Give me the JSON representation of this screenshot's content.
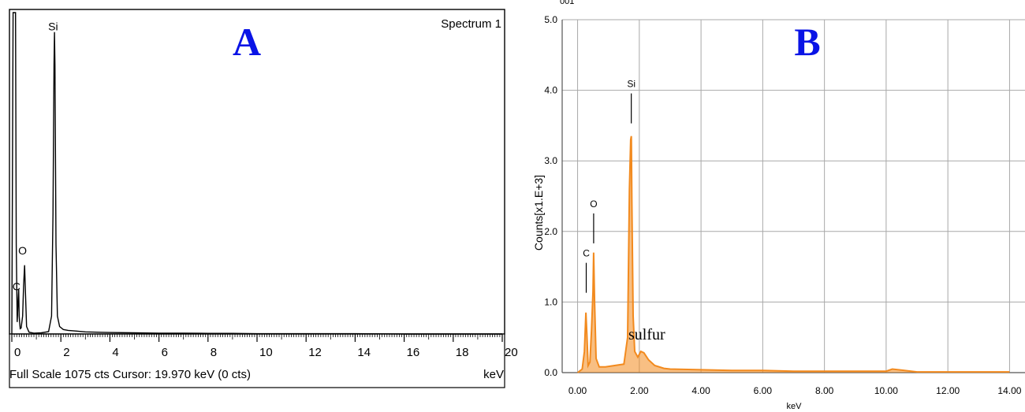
{
  "chart_data": [
    {
      "type": "line",
      "panel_letter": "A",
      "spectrum_label": "Spectrum 1",
      "xlabel": "keV",
      "xlim": [
        0,
        20
      ],
      "ylim": [
        0,
        1075
      ],
      "x_ticks": [
        0,
        2,
        4,
        6,
        8,
        10,
        12,
        14,
        16,
        18,
        20
      ],
      "grid": false,
      "status_text": "Full Scale 1075 cts  Cursor: 19.970 keV (0 cts)",
      "peak_labels": [
        {
          "text": "Si",
          "x": 1.74,
          "y": 1000
        },
        {
          "text": "O",
          "x": 0.52,
          "y": 250
        },
        {
          "text": "C",
          "x": 0.28,
          "y": 130
        }
      ],
      "series": [
        {
          "color": "#000000",
          "x": [
            0,
            0.05,
            0.1,
            0.15,
            0.18,
            0.22,
            0.26,
            0.28,
            0.3,
            0.34,
            0.38,
            0.44,
            0.48,
            0.52,
            0.56,
            0.6,
            0.7,
            0.9,
            1.2,
            1.5,
            1.62,
            1.68,
            1.72,
            1.74,
            1.76,
            1.8,
            1.86,
            1.95,
            2.1,
            2.3,
            2.6,
            3.0,
            4.0,
            5.0,
            6.0,
            7.0,
            8.0,
            9.0,
            10.0,
            12.0,
            14.0,
            16.0,
            18.0,
            20.0
          ],
          "y": [
            0,
            1075,
            1075,
            1075,
            300,
            40,
            120,
            150,
            60,
            18,
            20,
            60,
            160,
            230,
            130,
            25,
            6,
            3,
            4,
            8,
            60,
            400,
            900,
            1010,
            900,
            300,
            60,
            25,
            15,
            12,
            10,
            7,
            5,
            4,
            3,
            3,
            2,
            2,
            1,
            1,
            1,
            0,
            0,
            0
          ]
        }
      ]
    },
    {
      "type": "line",
      "panel_letter": "B",
      "top_label": "001",
      "xlabel": "keV",
      "ylabel": "Counts[x1.E+3]",
      "xlim": [
        -0.5,
        14.5
      ],
      "ylim": [
        0,
        5.0
      ],
      "x_ticks": [
        "0.00",
        "2.00",
        "4.00",
        "6.00",
        "8.00",
        "10.00",
        "12.00",
        "14.00"
      ],
      "y_ticks": [
        "0.0",
        "1.0",
        "2.0",
        "3.0",
        "4.0",
        "5.0"
      ],
      "grid": true,
      "annotation": {
        "text": "sulfur",
        "x": 2.3,
        "y": 0.45
      },
      "peak_labels": [
        {
          "text": "Si",
          "x": 1.74,
          "y": 4.0
        },
        {
          "text": "O",
          "x": 0.52,
          "y": 2.3
        },
        {
          "text": "C",
          "x": 0.28,
          "y": 1.6
        }
      ],
      "series": [
        {
          "color": "#f28a1e",
          "x": [
            0.0,
            0.15,
            0.22,
            0.27,
            0.3,
            0.34,
            0.4,
            0.45,
            0.5,
            0.52,
            0.55,
            0.6,
            0.7,
            0.9,
            1.2,
            1.5,
            1.62,
            1.68,
            1.72,
            1.74,
            1.76,
            1.8,
            1.85,
            1.95,
            2.05,
            2.15,
            2.3,
            2.5,
            2.8,
            3.0,
            4.0,
            5.0,
            6.0,
            7.0,
            8.0,
            9.0,
            10.0,
            10.2,
            11.0,
            12.0,
            13.0,
            14.0
          ],
          "y": [
            0.0,
            0.05,
            0.3,
            0.85,
            0.55,
            0.1,
            0.15,
            0.6,
            1.15,
            1.7,
            1.0,
            0.2,
            0.08,
            0.08,
            0.1,
            0.12,
            0.5,
            2.6,
            3.3,
            3.35,
            2.4,
            0.8,
            0.3,
            0.22,
            0.3,
            0.28,
            0.18,
            0.1,
            0.06,
            0.05,
            0.04,
            0.03,
            0.03,
            0.02,
            0.02,
            0.02,
            0.02,
            0.05,
            0.01,
            0.01,
            0.01,
            0.01
          ]
        }
      ]
    }
  ]
}
